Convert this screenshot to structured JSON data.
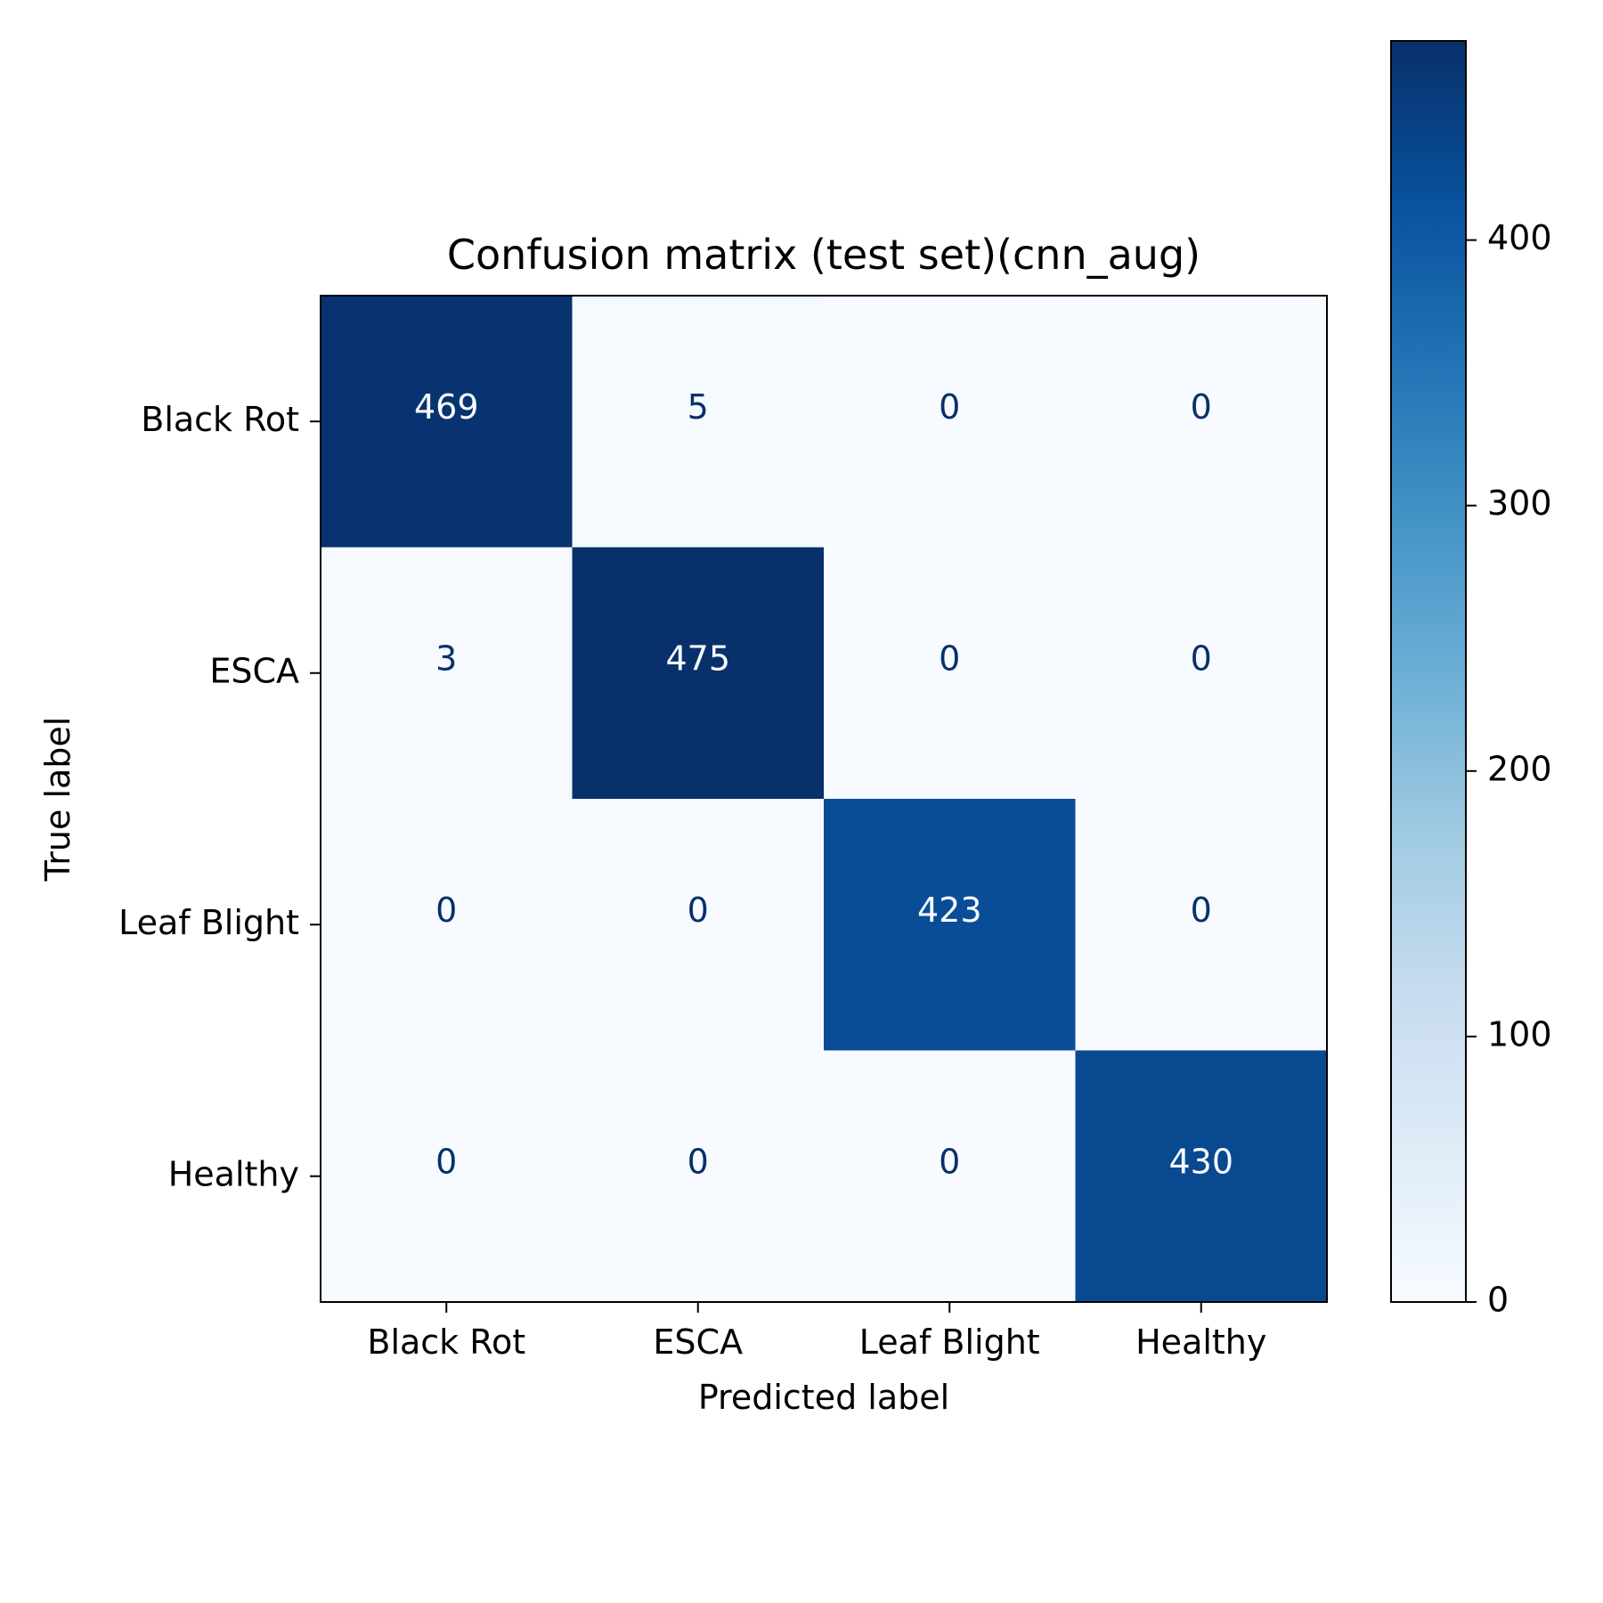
{
  "chart_data": {
    "type": "heatmap",
    "title": "Confusion matrix (test set)(cnn_aug)",
    "xlabel": "Predicted label",
    "ylabel": "True label",
    "x_categories": [
      "Black Rot",
      "ESCA",
      "Leaf Blight",
      "Healthy"
    ],
    "y_categories": [
      "Black Rot",
      "ESCA",
      "Leaf Blight",
      "Healthy"
    ],
    "matrix": [
      [
        469,
        5,
        0,
        0
      ],
      [
        3,
        475,
        0,
        0
      ],
      [
        0,
        0,
        423,
        0
      ],
      [
        0,
        0,
        0,
        430
      ]
    ],
    "colormap": "Blues",
    "colorbar": {
      "range": [
        0,
        475
      ],
      "ticks": [
        0,
        100,
        200,
        300,
        400
      ]
    },
    "grid": false
  },
  "colors": {
    "low": "#f7fbff",
    "high": "#08306b",
    "text_dark": "#08306b",
    "text_light": "#f7fbff"
  }
}
